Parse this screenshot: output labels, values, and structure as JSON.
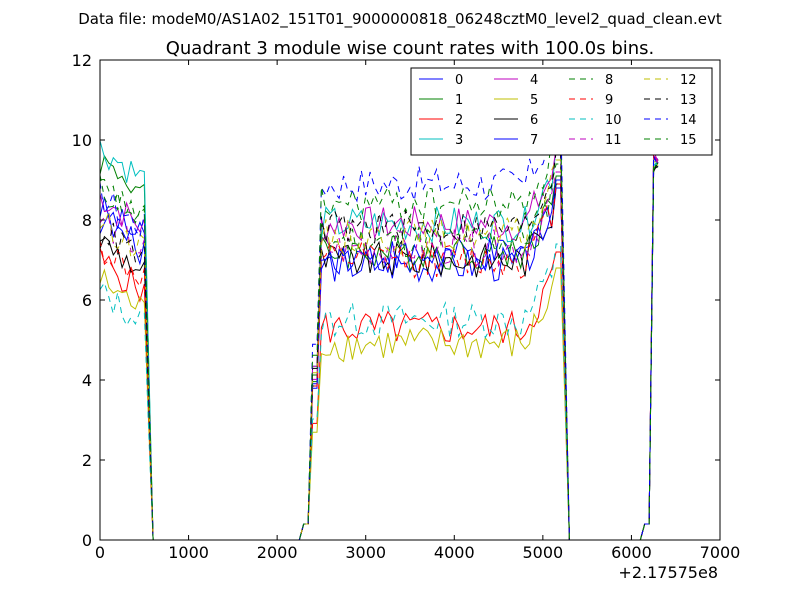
{
  "chart_data": {
    "type": "line",
    "suptitle": "Data file: modeM0/AS1A02_151T01_9000000818_06248cztM0_level2_quad_clean.evt",
    "title": "Quadrant 3 module wise count rates with 100.0s bins.",
    "xlabel": "",
    "ylabel": "",
    "x_offset_label": "+2.17575e8",
    "xlim": [
      0,
      7000
    ],
    "ylim": [
      0,
      12
    ],
    "xticks": [
      0,
      1000,
      2000,
      3000,
      4000,
      5000,
      6000,
      7000
    ],
    "yticks": [
      0,
      2,
      4,
      6,
      8,
      10,
      12
    ],
    "grid": false,
    "legend": {
      "placement": "top-right",
      "ncol": 4
    },
    "series": [
      {
        "name": "0",
        "color": "#0000ff",
        "style": "solid",
        "level_start": 8.3,
        "level_mid": 6.9
      },
      {
        "name": "1",
        "color": "#008000",
        "style": "solid",
        "level_start": 9.5,
        "level_mid": 7.2
      },
      {
        "name": "2",
        "color": "#ff0000",
        "style": "solid",
        "level_start": 7.0,
        "level_mid": 5.3
      },
      {
        "name": "3",
        "color": "#00bfbf",
        "style": "solid",
        "level_start": 9.8,
        "level_mid": 7.9
      },
      {
        "name": "4",
        "color": "#bf00bf",
        "style": "solid",
        "level_start": 8.6,
        "level_mid": 7.9
      },
      {
        "name": "5",
        "color": "#bfbf00",
        "style": "solid",
        "level_start": 6.5,
        "level_mid": 4.9
      },
      {
        "name": "6",
        "color": "#000000",
        "style": "solid",
        "level_start": 7.5,
        "level_mid": 7.0
      },
      {
        "name": "7",
        "color": "#0000ff",
        "style": "solid",
        "level_start": 8.0,
        "level_mid": 7.1
      },
      {
        "name": "8",
        "color": "#008000",
        "style": "dashed",
        "level_start": 8.8,
        "level_mid": 7.5
      },
      {
        "name": "9",
        "color": "#ff0000",
        "style": "dashed",
        "level_start": 7.3,
        "level_mid": 7.0
      },
      {
        "name": "10",
        "color": "#00bfbf",
        "style": "dashed",
        "level_start": 6.2,
        "level_mid": 5.5
      },
      {
        "name": "11",
        "color": "#bf00bf",
        "style": "dashed",
        "level_start": 8.0,
        "level_mid": 7.3
      },
      {
        "name": "12",
        "color": "#bfbf00",
        "style": "dashed",
        "level_start": 8.0,
        "level_mid": 7.6
      },
      {
        "name": "13",
        "color": "#000000",
        "style": "dashed",
        "level_start": 7.8,
        "level_mid": 7.8
      },
      {
        "name": "14",
        "color": "#0000ff",
        "style": "dashed",
        "level_start": 8.6,
        "level_mid": 8.9
      },
      {
        "name": "15",
        "color": "#008000",
        "style": "dashed",
        "level_start": 8.8,
        "level_mid": 8.4
      }
    ]
  }
}
